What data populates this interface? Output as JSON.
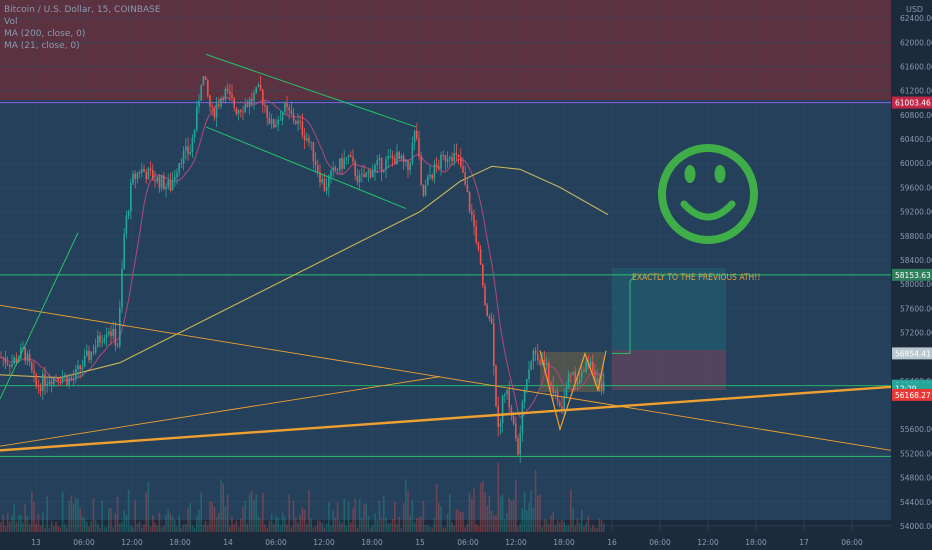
{
  "header": {
    "symbol_line": "Bitcoin / U.S. Dollar, 15, COINBASE",
    "indicator_vol": "Vol",
    "indicator_ma200": "MA (200, close, 0)",
    "indicator_ma21": "MA (21, close, 0)"
  },
  "axis": {
    "currency": "USD",
    "price_ticks": [
      {
        "label": "62400.00",
        "v": 62400
      },
      {
        "label": "62000.00",
        "v": 62000
      },
      {
        "label": "61600.00",
        "v": 61600
      },
      {
        "label": "61200.00",
        "v": 61200
      },
      {
        "label": "60800.00",
        "v": 60800
      },
      {
        "label": "60400.00",
        "v": 60400
      },
      {
        "label": "60000.00",
        "v": 60000
      },
      {
        "label": "59600.00",
        "v": 59600
      },
      {
        "label": "59200.00",
        "v": 59200
      },
      {
        "label": "58800.00",
        "v": 58800
      },
      {
        "label": "58400.00",
        "v": 58400
      },
      {
        "label": "58000.00",
        "v": 58000
      },
      {
        "label": "57600.00",
        "v": 57600
      },
      {
        "label": "57200.00",
        "v": 57200
      },
      {
        "label": "56400.00",
        "v": 56400
      },
      {
        "label": "55600.00",
        "v": 55600
      },
      {
        "label": "55200.00",
        "v": 55200
      },
      {
        "label": "54800.00",
        "v": 54800
      },
      {
        "label": "54400.00",
        "v": 54400
      },
      {
        "label": "54000.00",
        "v": 54000
      }
    ],
    "time_ticks": [
      "13",
      "06:00",
      "12:00",
      "18:00",
      "14",
      "06:00",
      "12:00",
      "18:00",
      "15",
      "06:00",
      "12:00",
      "18:00",
      "16",
      "06:00",
      "12:00",
      "18:00",
      "17",
      "06:00"
    ],
    "price_tags": [
      {
        "label": "61003.46",
        "v": 61003.46,
        "color": "#c0284a"
      },
      {
        "label": "58153.63",
        "v": 58153.63,
        "color": "#2e7d5b"
      },
      {
        "label": "56854.41",
        "v": 56854.41,
        "color": "#b9c7cf"
      },
      {
        "label": "56320.00",
        "v": 56320,
        "color": "#26a69a"
      },
      {
        "label": "12:29",
        "v": 56270,
        "color": "#26a69a"
      },
      {
        "label": "56168.27",
        "v": 56168.27,
        "color": "#e53935"
      }
    ]
  },
  "annotations": {
    "ath_text": "EXACTLY TO THE PREVIOUS ATH!!"
  },
  "chart_data": {
    "type": "candlestick",
    "title": "Bitcoin / U.S. Dollar, 15, COINBASE",
    "ylim": [
      53900,
      62700
    ],
    "colors": {
      "up": "#26a69a",
      "down": "#ef5350",
      "ma200": "#c8b45a",
      "ma21": "#a4497a",
      "trend": "#f0a030",
      "green_line": "#26c26a",
      "smiley": "#3fae49"
    },
    "horizontal_levels": [
      61003.46,
      58153.63,
      56320,
      55150
    ],
    "path_closes": [
      [
        0,
        56800
      ],
      [
        12,
        56700
      ],
      [
        24,
        56900
      ],
      [
        36,
        56300
      ],
      [
        48,
        56450
      ],
      [
        60,
        56500
      ],
      [
        72,
        56400
      ],
      [
        84,
        56700
      ],
      [
        96,
        57000
      ],
      [
        108,
        57300
      ],
      [
        118,
        57000
      ],
      [
        124,
        58800
      ],
      [
        132,
        59700
      ],
      [
        140,
        59900
      ],
      [
        150,
        59800
      ],
      [
        160,
        59700
      ],
      [
        170,
        59600
      ],
      [
        180,
        60100
      ],
      [
        190,
        60200
      ],
      [
        196,
        60700
      ],
      [
        202,
        61500
      ],
      [
        212,
        60800
      ],
      [
        224,
        61200
      ],
      [
        236,
        60900
      ],
      [
        248,
        61000
      ],
      [
        260,
        61200
      ],
      [
        272,
        60600
      ],
      [
        284,
        60900
      ],
      [
        296,
        60700
      ],
      [
        308,
        60400
      ],
      [
        316,
        60000
      ],
      [
        324,
        59600
      ],
      [
        336,
        59900
      ],
      [
        348,
        60100
      ],
      [
        360,
        59700
      ],
      [
        372,
        59900
      ],
      [
        384,
        60000
      ],
      [
        396,
        60100
      ],
      [
        408,
        59900
      ],
      [
        416,
        60600
      ],
      [
        422,
        59400
      ],
      [
        430,
        59800
      ],
      [
        440,
        60000
      ],
      [
        450,
        60200
      ],
      [
        460,
        60000
      ],
      [
        468,
        59400
      ],
      [
        476,
        58800
      ],
      [
        484,
        57800
      ],
      [
        492,
        57300
      ],
      [
        498,
        55500
      ],
      [
        504,
        56300
      ],
      [
        510,
        56000
      ],
      [
        518,
        55200
      ],
      [
        526,
        56500
      ],
      [
        534,
        56900
      ],
      [
        544,
        56700
      ],
      [
        554,
        56200
      ],
      [
        562,
        55900
      ],
      [
        570,
        56600
      ],
      [
        580,
        56400
      ],
      [
        590,
        56800
      ],
      [
        600,
        56200
      ],
      [
        606,
        56300
      ]
    ]
  }
}
